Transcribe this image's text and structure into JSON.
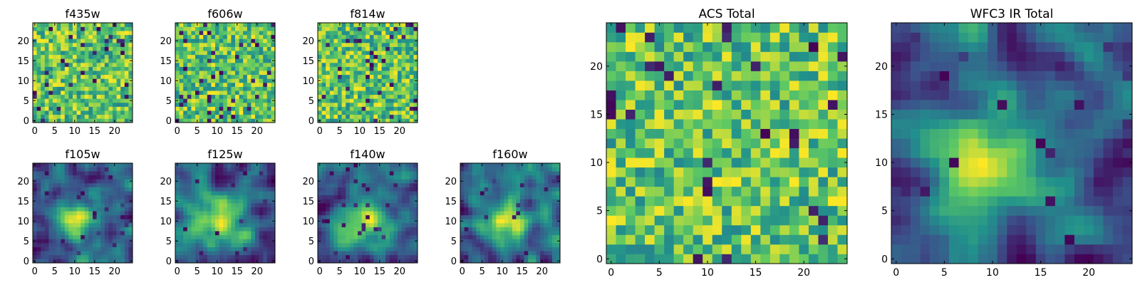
{
  "figure": {
    "description_title": ""
  },
  "colormap": {
    "name": "viridis",
    "stops": [
      "#440154",
      "#3b528b",
      "#21918c",
      "#5ec962",
      "#fde725"
    ]
  },
  "chart_data": [
    {
      "type": "heatmap",
      "title": "f435w",
      "grid_size": 25,
      "xticks": [
        "0",
        "5",
        "10",
        "15",
        "20"
      ],
      "yticks": [
        "0",
        "5",
        "10",
        "15",
        "20"
      ],
      "xlim": [
        -0.5,
        24.5
      ],
      "ylim": [
        -0.5,
        24.5
      ],
      "pattern": "noise",
      "seed": 11
    },
    {
      "type": "heatmap",
      "title": "f606w",
      "grid_size": 25,
      "xticks": [
        "0",
        "5",
        "10",
        "15",
        "20"
      ],
      "yticks": [
        "0",
        "5",
        "10",
        "15",
        "20"
      ],
      "xlim": [
        -0.5,
        24.5
      ],
      "ylim": [
        -0.5,
        24.5
      ],
      "pattern": "noise",
      "seed": 23
    },
    {
      "type": "heatmap",
      "title": "f814w",
      "grid_size": 25,
      "xticks": [
        "0",
        "5",
        "10",
        "15",
        "20"
      ],
      "yticks": [
        "0",
        "5",
        "10",
        "15",
        "20"
      ],
      "xlim": [
        -0.5,
        24.5
      ],
      "ylim": [
        -0.5,
        24.5
      ],
      "pattern": "noise",
      "seed": 37
    },
    {
      "type": "heatmap",
      "title": "f105w",
      "grid_size": 25,
      "xticks": [
        "0",
        "5",
        "10",
        "15",
        "20"
      ],
      "yticks": [
        "0",
        "5",
        "10",
        "15",
        "20"
      ],
      "xlim": [
        -0.5,
        24.5
      ],
      "ylim": [
        -0.5,
        24.5
      ],
      "pattern": "blob",
      "seed": 41
    },
    {
      "type": "heatmap",
      "title": "f125w",
      "grid_size": 25,
      "xticks": [
        "0",
        "5",
        "10",
        "15",
        "20"
      ],
      "yticks": [
        "0",
        "5",
        "10",
        "15",
        "20"
      ],
      "xlim": [
        -0.5,
        24.5
      ],
      "ylim": [
        -0.5,
        24.5
      ],
      "pattern": "blob",
      "seed": 53
    },
    {
      "type": "heatmap",
      "title": "f140w",
      "grid_size": 25,
      "xticks": [
        "0",
        "5",
        "10",
        "15",
        "20"
      ],
      "yticks": [
        "0",
        "5",
        "10",
        "15",
        "20"
      ],
      "xlim": [
        -0.5,
        24.5
      ],
      "ylim": [
        -0.5,
        24.5
      ],
      "pattern": "blob",
      "seed": 67
    },
    {
      "type": "heatmap",
      "title": "f160w",
      "grid_size": 25,
      "xticks": [
        "0",
        "5",
        "10",
        "15",
        "20"
      ],
      "yticks": [
        "0",
        "5",
        "10",
        "15",
        "20"
      ],
      "xlim": [
        -0.5,
        24.5
      ],
      "ylim": [
        -0.5,
        24.5
      ],
      "pattern": "blob",
      "seed": 79
    },
    {
      "type": "heatmap",
      "title": "ACS Total",
      "grid_size": 25,
      "xticks": [
        "0",
        "5",
        "10",
        "15",
        "20"
      ],
      "yticks": [
        "0",
        "5",
        "10",
        "15",
        "20"
      ],
      "xlim": [
        -0.5,
        24.5
      ],
      "ylim": [
        -0.5,
        24.5
      ],
      "pattern": "noise",
      "seed": 97
    },
    {
      "type": "heatmap",
      "title": "WFC3 IR Total",
      "grid_size": 25,
      "xticks": [
        "0",
        "5",
        "10",
        "15",
        "20"
      ],
      "yticks": [
        "0",
        "5",
        "10",
        "15",
        "20"
      ],
      "xlim": [
        -0.5,
        24.5
      ],
      "ylim": [
        -0.5,
        24.5
      ],
      "pattern": "blob",
      "seed": 101
    }
  ]
}
